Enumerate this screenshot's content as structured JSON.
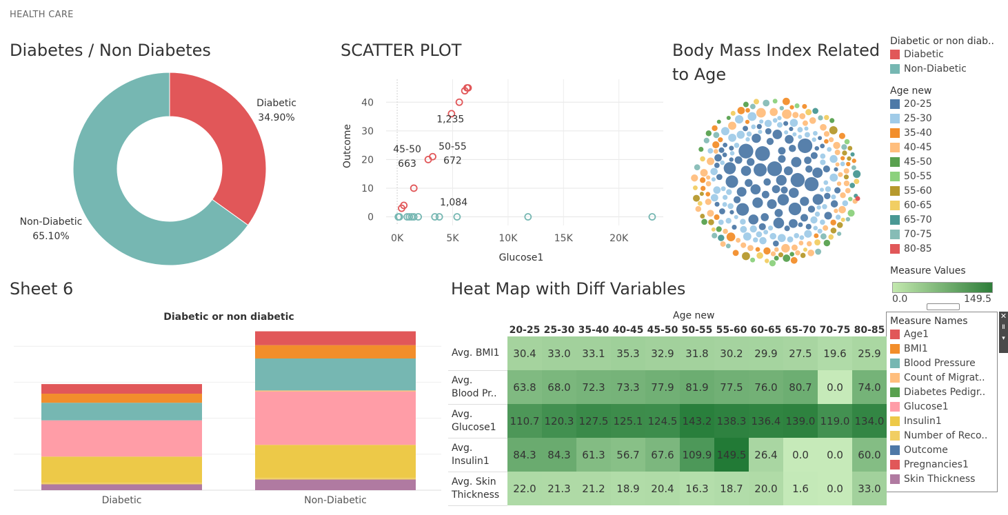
{
  "dashboard": {
    "title": "HEALTH CARE"
  },
  "colors": {
    "diabetic": "#e15759",
    "non_diabetic": "#76b7b2",
    "age": {
      "20-25": "#4e79a7",
      "25-30": "#a0cbe8",
      "35-40": "#f28e2b",
      "40-45": "#ffbe7d",
      "45-50": "#59a14f",
      "50-55": "#8cd17d",
      "55-60": "#b6992d",
      "60-65": "#f1ce63",
      "65-70": "#499894",
      "70-75": "#86bcb6",
      "80-85": "#e15759"
    }
  },
  "donut": {
    "title": "Diabetes / Non Diabetes",
    "labels": {
      "diabetic_name": "Diabetic",
      "diabetic_pct": "34.90%",
      "non_name": "Non-Diabetic",
      "non_pct": "65.10%"
    },
    "chart_data": {
      "type": "pie",
      "categories": [
        "Diabetic",
        "Non-Diabetic"
      ],
      "values": [
        34.9,
        65.1
      ]
    }
  },
  "scatter": {
    "title": "SCATTER PLOT",
    "chart_data": {
      "type": "scatter",
      "xlabel": "Glucose1",
      "ylabel": "Outcome",
      "xlim": [
        -1000,
        24000
      ],
      "ylim": [
        -3,
        48
      ],
      "xticks": [
        "0K",
        "5K",
        "10K",
        "15K",
        "20K"
      ],
      "xtick_values": [
        0,
        5000,
        10000,
        15000,
        20000
      ],
      "yticks": [
        "0",
        "10",
        "20",
        "30",
        "40"
      ],
      "ytick_values": [
        0,
        10,
        20,
        30,
        40
      ],
      "series": [
        {
          "name": "Diabetic",
          "points": [
            [
              400,
              3
            ],
            [
              600,
              4
            ],
            [
              1500,
              10
            ],
            [
              2800,
              20
            ],
            [
              3200,
              21
            ],
            [
              4900,
              36
            ],
            [
              5600,
              40
            ],
            [
              6100,
              44
            ],
            [
              6300,
              45
            ],
            [
              6400,
              45
            ]
          ]
        },
        {
          "name": "Non-Diabetic",
          "points": [
            [
              100,
              0
            ],
            [
              200,
              0
            ],
            [
              900,
              0
            ],
            [
              1100,
              0
            ],
            [
              1300,
              0
            ],
            [
              1500,
              0
            ],
            [
              1900,
              0
            ],
            [
              3400,
              0
            ],
            [
              3800,
              0
            ],
            [
              5400,
              0
            ],
            [
              11800,
              0
            ],
            [
              23000,
              0
            ]
          ]
        }
      ],
      "annotations": [
        {
          "text": "1,235",
          "x": 4800,
          "y": 33
        },
        {
          "text": "45-50",
          "x": 900,
          "y": 22.5
        },
        {
          "text": "663",
          "x": 900,
          "y": 17.5
        },
        {
          "text": "50-55",
          "x": 5000,
          "y": 23.5
        },
        {
          "text": "672",
          "x": 5000,
          "y": 18.5
        },
        {
          "text": "1,084",
          "x": 5100,
          "y": 4
        }
      ]
    }
  },
  "bubble": {
    "title_line1": "Body Mass Index Related",
    "title_line2": "to Age"
  },
  "legends": {
    "diabetic": {
      "title": "Diabetic or non diab..",
      "items": [
        {
          "label": "Diabetic",
          "color": "#e15759"
        },
        {
          "label": "Non-Diabetic",
          "color": "#76b7b2"
        }
      ]
    },
    "age": {
      "title": "Age new",
      "items": [
        {
          "label": "20-25",
          "color": "#4e79a7"
        },
        {
          "label": "25-30",
          "color": "#a0cbe8"
        },
        {
          "label": "35-40",
          "color": "#f28e2b"
        },
        {
          "label": "40-45",
          "color": "#ffbe7d"
        },
        {
          "label": "45-50",
          "color": "#59a14f"
        },
        {
          "label": "50-55",
          "color": "#8cd17d"
        },
        {
          "label": "55-60",
          "color": "#b6992d"
        },
        {
          "label": "60-65",
          "color": "#f1ce63"
        },
        {
          "label": "65-70",
          "color": "#499894"
        },
        {
          "label": "70-75",
          "color": "#86bcb6"
        },
        {
          "label": "80-85",
          "color": "#e15759"
        }
      ]
    },
    "measure_values": {
      "title": "Measure Values",
      "min": "0.0",
      "max": "149.5"
    },
    "measure_names": {
      "title": "Measure Names",
      "items": [
        {
          "label": "Age1",
          "color": "#e15759"
        },
        {
          "label": "BMI1",
          "color": "#f28e2b"
        },
        {
          "label": "Blood Pressure",
          "color": "#76b7b2"
        },
        {
          "label": "Count of Migrat..",
          "color": "#ffbe7d"
        },
        {
          "label": "Diabetes Pedigr..",
          "color": "#59a14f"
        },
        {
          "label": "Glucose1",
          "color": "#ff9da7"
        },
        {
          "label": "Insulin1",
          "color": "#edc948"
        },
        {
          "label": "Number of Reco..",
          "color": "#f1ce63"
        },
        {
          "label": "Outcome",
          "color": "#4e79a7"
        },
        {
          "label": "Pregnancies1",
          "color": "#e15759"
        },
        {
          "label": "Skin Thickness",
          "color": "#b07aa1"
        }
      ]
    }
  },
  "stacked": {
    "title": "Sheet 6",
    "header": "Diabetic or non diabetic",
    "chart_data": {
      "type": "bar",
      "categories": [
        "Diabetic",
        "Non-Diabetic"
      ],
      "series": [
        {
          "name": "Skin Thickness",
          "color": "#b07aa1",
          "values": [
            11,
            20
          ]
        },
        {
          "name": "Number of Reco..",
          "color": "#f1ce63",
          "values": [
            3,
            3
          ]
        },
        {
          "name": "Insulin1",
          "color": "#edc948",
          "values": [
            49,
            62
          ]
        },
        {
          "name": "Glucose1",
          "color": "#ff9da7",
          "values": [
            68,
            100
          ]
        },
        {
          "name": "Count of Migrat..",
          "color": "#ffbe7d",
          "values": [
            0,
            2
          ]
        },
        {
          "name": "Blood Pressure",
          "color": "#76b7b2",
          "values": [
            33,
            60
          ]
        },
        {
          "name": "BMI1",
          "color": "#f28e2b",
          "values": [
            17,
            25
          ]
        },
        {
          "name": "Age1",
          "color": "#e15759",
          "values": [
            18,
            26
          ]
        }
      ],
      "ylim": [
        0,
        300
      ]
    }
  },
  "heatmap": {
    "title": "Heat Map with Diff Variables",
    "col_header": "Age new",
    "chart_data": {
      "type": "heatmap",
      "columns": [
        "20-25",
        "25-30",
        "35-40",
        "40-45",
        "45-50",
        "50-55",
        "55-60",
        "60-65",
        "65-70",
        "70-75",
        "80-85"
      ],
      "rows": [
        {
          "label1": "Avg. BMI1",
          "label2": "",
          "values": [
            "30.4",
            "33.0",
            "33.1",
            "35.3",
            "32.9",
            "31.8",
            "30.2",
            "29.9",
            "27.5",
            "19.6",
            "25.9"
          ]
        },
        {
          "label1": "Avg.",
          "label2": "Blood Pr..",
          "values": [
            "63.8",
            "68.0",
            "72.3",
            "73.3",
            "77.9",
            "81.9",
            "77.5",
            "76.0",
            "80.7",
            "0.0",
            "74.0"
          ]
        },
        {
          "label1": "Avg.",
          "label2": "Glucose1",
          "values": [
            "110.7",
            "120.3",
            "127.5",
            "125.1",
            "124.5",
            "143.2",
            "138.3",
            "136.4",
            "139.0",
            "119.0",
            "134.0"
          ]
        },
        {
          "label1": "Avg.",
          "label2": "Insulin1",
          "values": [
            "84.3",
            "84.3",
            "61.3",
            "56.7",
            "67.6",
            "109.9",
            "149.5",
            "26.4",
            "0.0",
            "0.0",
            "60.0"
          ]
        },
        {
          "label1": "Avg. Skin",
          "label2": "Thickness",
          "values": [
            "22.0",
            "21.3",
            "21.2",
            "18.9",
            "20.4",
            "16.3",
            "18.7",
            "20.0",
            "1.6",
            "0.0",
            "33.0"
          ]
        }
      ],
      "vmin": 0,
      "vmax": 149.5
    }
  }
}
